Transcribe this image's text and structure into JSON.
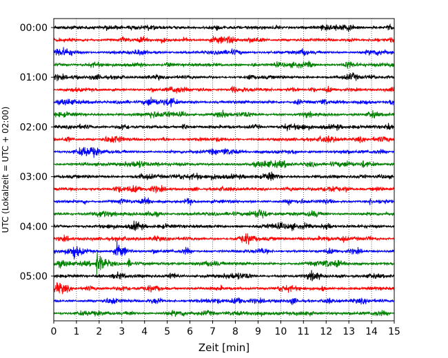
{
  "chart_data": {
    "type": "line",
    "title": "",
    "xlabel": "Zeit  [min]",
    "ylabel": "UTC (Lokalzeit = UTC + 02:00)",
    "xlim": [
      0,
      15
    ],
    "x_ticks": [
      0,
      1,
      2,
      3,
      4,
      5,
      6,
      7,
      8,
      9,
      10,
      11,
      12,
      13,
      14,
      15
    ],
    "x_tick_labels": [
      "0",
      "1",
      "2",
      "3",
      "4",
      "5",
      "6",
      "7",
      "8",
      "9",
      "10",
      "11",
      "12",
      "13",
      "14",
      "15"
    ],
    "y_tick_labels": [
      "00:00",
      "01:00",
      "02:00",
      "03:00",
      "04:00",
      "05:00"
    ],
    "y_tick_rows": [
      0,
      4,
      8,
      12,
      16,
      20
    ],
    "grid": "vertical dotted at each minute",
    "row_interval_minutes": 15,
    "row_start_times": [
      "00:00",
      "00:15",
      "00:30",
      "00:45",
      "01:00",
      "01:15",
      "01:30",
      "01:45",
      "02:00",
      "02:15",
      "02:30",
      "02:45",
      "03:00",
      "03:15",
      "03:30",
      "03:45",
      "04:00",
      "04:15",
      "04:30",
      "04:45",
      "05:00",
      "05:15",
      "05:30",
      "05:45"
    ],
    "row_colors": [
      "#000000",
      "#ff0000",
      "#0000ff",
      "#008000"
    ],
    "events": [
      {
        "row": 19,
        "x_minutes": 1.9,
        "amplitude": "large"
      },
      {
        "row": 19,
        "x_minutes": 3.3,
        "amplitude": "medium"
      },
      {
        "row": 18,
        "x_minutes": 2.8,
        "amplitude": "medium"
      },
      {
        "row": 18,
        "x_minutes": 0.9,
        "amplitude": "medium"
      },
      {
        "row": 3,
        "x_minutes": 5.0,
        "amplitude": "medium"
      },
      {
        "row": 4,
        "x_minutes": 8.6,
        "amplitude": "medium"
      },
      {
        "row": 1,
        "x_minutes": 3.0,
        "amplitude": "medium"
      },
      {
        "row": 8,
        "x_minutes": 5.7,
        "amplitude": "medium"
      },
      {
        "row": 22,
        "x_minutes": 10.5,
        "amplitude": "medium"
      },
      {
        "row": 11,
        "x_minutes": 13.6,
        "amplitude": "medium"
      }
    ]
  }
}
